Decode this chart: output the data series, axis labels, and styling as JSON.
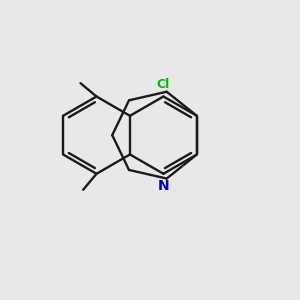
{
  "bg_color": "#e8e8e8",
  "bond_color": "#1a1a1a",
  "cl_color": "#00bb00",
  "n_color": "#0000cc",
  "line_width": 1.7,
  "fig_size": [
    3.0,
    3.0
  ],
  "dpi": 100,
  "xlim": [
    0,
    10
  ],
  "ylim": [
    0,
    10
  ]
}
